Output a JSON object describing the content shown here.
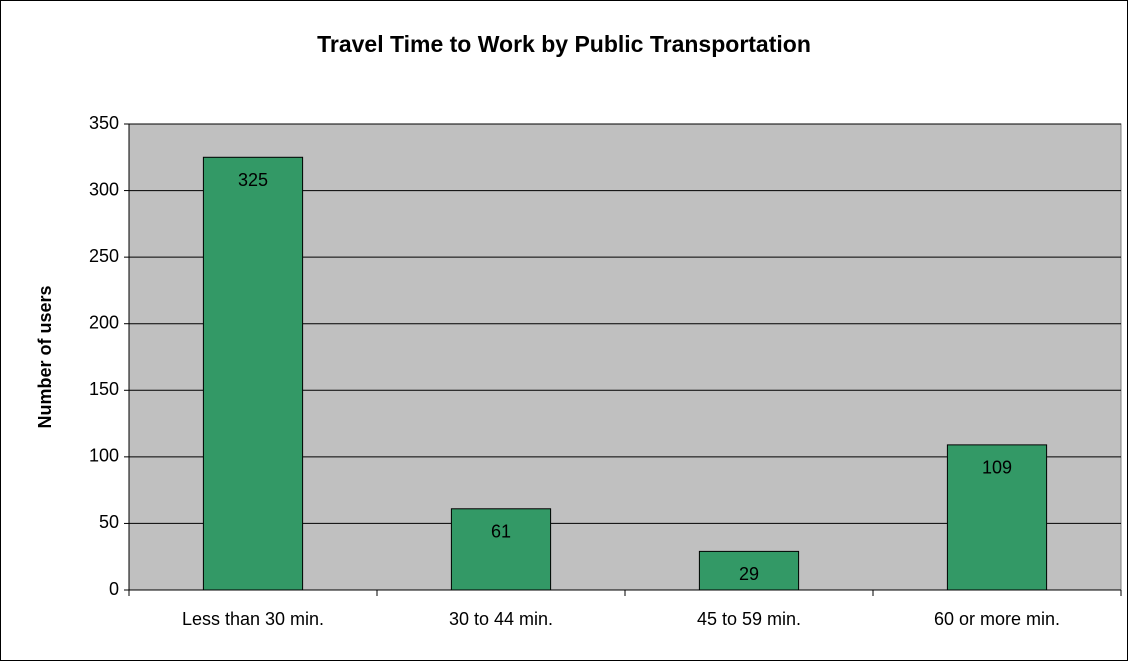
{
  "chart_data": {
    "type": "bar",
    "title": "Travel Time to Work by Public Transportation",
    "y_label": "Number of users",
    "categories": [
      "Less than 30 min.",
      "30 to 44 min.",
      "45 to 59 min.",
      "60 or more min."
    ],
    "values": [
      325,
      61,
      29,
      109
    ],
    "color": "#339966",
    "ylim": [
      0,
      350
    ],
    "yticks": [
      0,
      50,
      100,
      150,
      200,
      250,
      300,
      350
    ],
    "grid": true
  }
}
